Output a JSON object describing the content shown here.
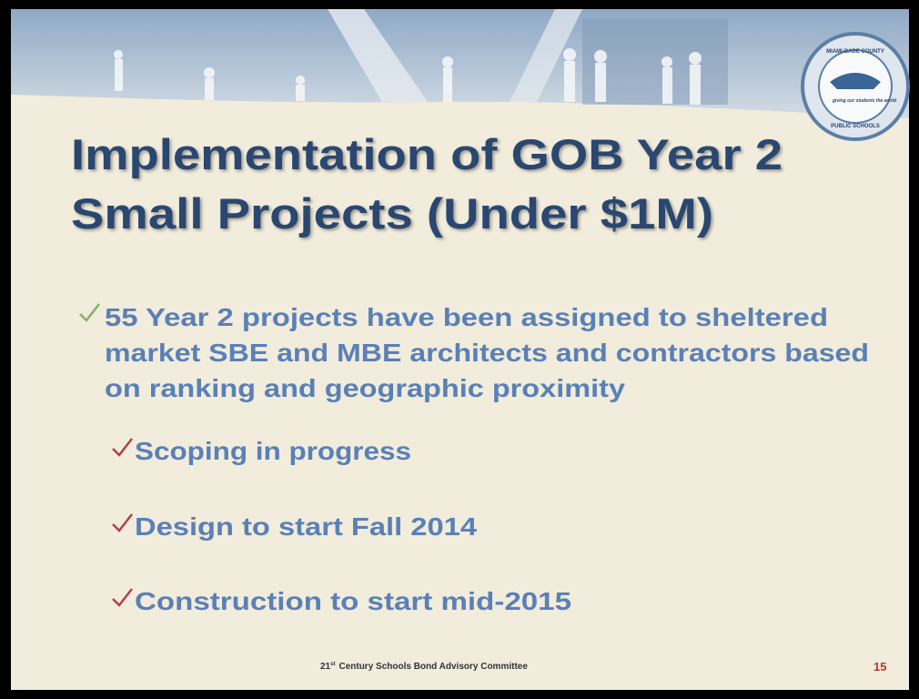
{
  "slide": {
    "logo": {
      "top": "MIAMI-DADE COUNTY",
      "middle": "giving our students the world",
      "bottom": "PUBLIC SCHOOLS"
    },
    "title": [
      "Implementation of GOB Year 2",
      "Small Projects (Under $1M)"
    ],
    "bullet": {
      "lines": [
        "55 Year 2 projects have been assigned to sheltered",
        "market SBE and MBE architects and contractors based",
        "on ranking and geographic proximity"
      ]
    },
    "subbullets": [
      "Scoping in progress",
      "Design to start Fall  2014",
      "Construction to start mid-2015"
    ],
    "footer": {
      "number": "21",
      "suffix": "st",
      "text": "Century Schools Bond Advisory Committee"
    },
    "page_number": "15"
  }
}
